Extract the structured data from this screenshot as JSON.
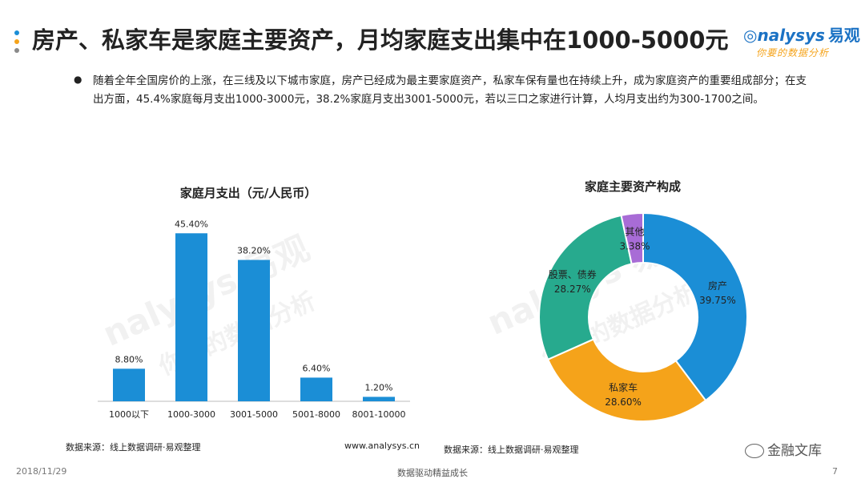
{
  "title": "房产、私家车是家庭主要资产，月均家庭支出集中在1000-5000元",
  "logo": {
    "brand": "nalysys",
    "brand_cn": "易观",
    "slogan": "你要的数据分析"
  },
  "bullet_symbol": "●",
  "intro": "随着全年全国房价的上涨，在三线及以下城市家庭，房产已经成为最主要家庭资产，私家车保有量也在持续上升，成为家庭资产的重要组成部分；在支出方面，45.4%家庭每月支出1000-3000元，38.2%家庭月支出3001-5000元，若以三口之家进行计算，人均月支出约为300-1700之间。",
  "watermark": {
    "brand": "nalysys 易观",
    "slogan": "你要的数据分析"
  },
  "chart_data": [
    {
      "type": "bar",
      "title": "家庭月支出（元/人民币）",
      "categories": [
        "1000以下",
        "1000-3000",
        "3001-5000",
        "5001-8000",
        "8001-10000"
      ],
      "values": [
        8.8,
        45.4,
        38.2,
        6.4,
        1.2
      ],
      "value_labels": [
        "8.80%",
        "45.40%",
        "38.20%",
        "6.40%",
        "1.20%"
      ],
      "color": "#1b8ed6",
      "ylim": [
        0,
        50
      ],
      "grid": false
    },
    {
      "type": "pie",
      "title": "家庭主要资产构成",
      "labels": [
        "房产",
        "私家车",
        "股票、债券",
        "其他"
      ],
      "values": [
        39.75,
        28.6,
        28.27,
        3.38
      ],
      "value_labels": [
        "39.75%",
        "28.60%",
        "28.27%",
        "3.38%"
      ],
      "colors": [
        "#1b8ed6",
        "#f5a31a",
        "#27aa8e",
        "#a86cd6"
      ],
      "donut": true
    }
  ],
  "sources": {
    "left": "数据来源：线上数据调研·易观整理",
    "left_url": "www.analysys.cn",
    "right": "数据来源：线上数据调研·易观整理"
  },
  "footer": {
    "date": "2018/11/29",
    "slogan": "数据驱动精益成长",
    "page": "7"
  },
  "badge": {
    "text": "金融文库"
  }
}
